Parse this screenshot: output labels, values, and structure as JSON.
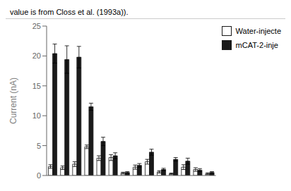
{
  "chart_data": {
    "type": "bar",
    "title": "",
    "annotations": [
      "value is from Closs et al. (1993a))."
    ],
    "y_label": "Current (nA)",
    "categories": [
      null,
      null,
      null,
      null,
      null,
      null,
      null,
      null,
      null,
      null,
      null,
      null,
      null,
      null
    ],
    "series": [
      {
        "name": "Water-injecte",
        "color": "#ffffff",
        "values": [
          1.5,
          1.3,
          1.9,
          4.8,
          2.9,
          3.0,
          0.4,
          1.4,
          2.3,
          0.6,
          0.3,
          1.4,
          1.0,
          0.3
        ],
        "errors": [
          0.3,
          0.3,
          0.4,
          0.3,
          0.4,
          0.5,
          0.15,
          0.35,
          0.4,
          0.2,
          0.1,
          0.4,
          0.3,
          0.15
        ]
      },
      {
        "name": "mCAT-2-inje",
        "color": "#1a1a1a",
        "values": [
          20.4,
          19.4,
          19.8,
          11.5,
          5.7,
          3.3,
          0.5,
          1.7,
          3.9,
          1.0,
          2.7,
          2.4,
          0.9,
          0.5
        ],
        "errors": [
          1.6,
          2.3,
          1.8,
          0.6,
          0.7,
          0.5,
          0.15,
          0.3,
          0.5,
          0.2,
          0.3,
          0.5,
          0.25,
          0.15
        ]
      }
    ],
    "ylim": [
      0,
      25
    ],
    "yticks": [
      0,
      5,
      10,
      15,
      20,
      25
    ],
    "grid": false,
    "tick_labels": "y"
  }
}
